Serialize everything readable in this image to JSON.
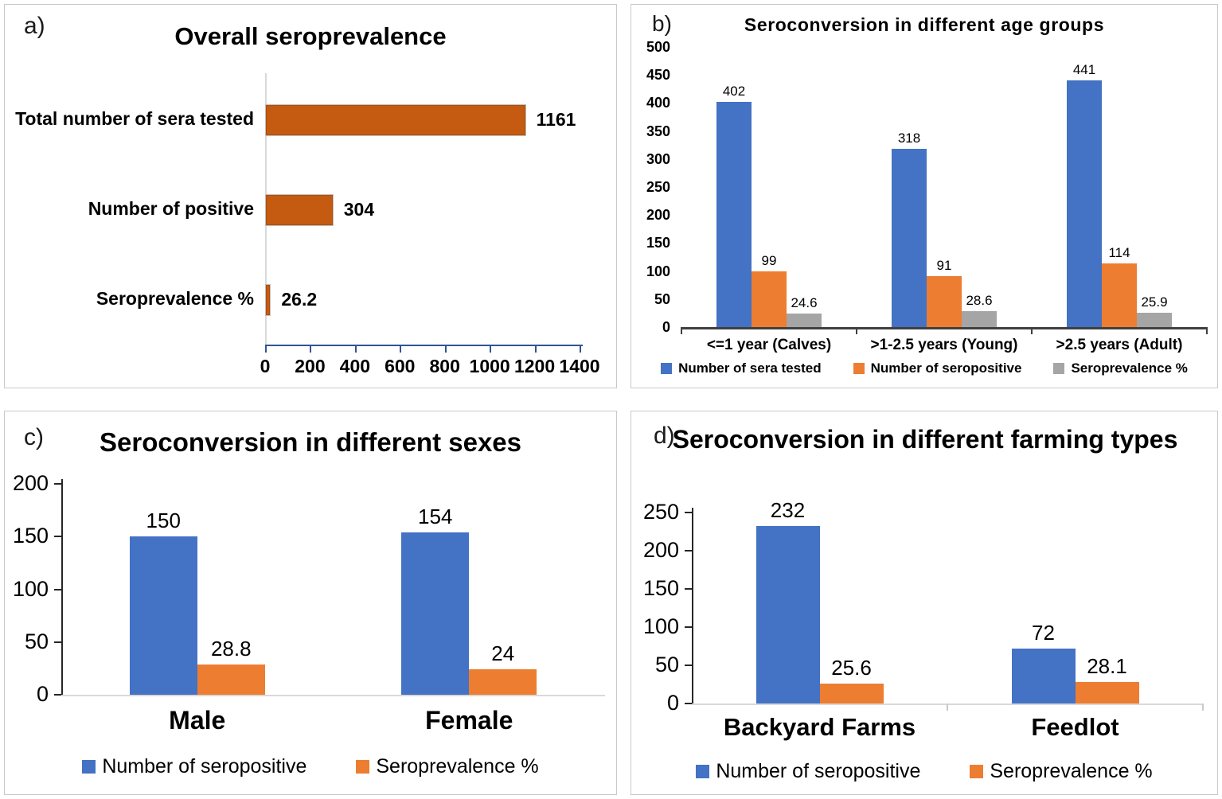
{
  "figure": {
    "panel_labels": [
      "a)",
      "b)",
      "c)",
      "d)"
    ],
    "colors": {
      "blue": "#4472c4",
      "orange": "#ed7d31",
      "gray": "#a5a5a5",
      "dark_orange": "#c55a11"
    }
  },
  "chart_data": [
    {
      "panel": "a",
      "type": "bar",
      "orientation": "horizontal",
      "title": "Overall seroprevalence",
      "categories": [
        "Total number of sera tested",
        "Number of positive",
        "Seroprevalence %"
      ],
      "values": [
        1161,
        304,
        26.2
      ],
      "data_labels": [
        "1161",
        "304",
        "26.2"
      ],
      "bar_color": "#c55a11",
      "xlim": [
        0,
        1400
      ],
      "xticks": [
        0,
        200,
        400,
        600,
        800,
        1000,
        1200,
        1400
      ],
      "grid": false,
      "legend": null
    },
    {
      "panel": "b",
      "type": "bar",
      "orientation": "vertical",
      "title": "Seroconversion in different age groups",
      "categories": [
        "<=1 year (Calves)",
        ">1-2.5 years (Young)",
        ">2.5 years (Adult)"
      ],
      "series": [
        {
          "name": "Number of sera tested",
          "color": "#4472c4",
          "values": [
            402,
            318,
            441
          ],
          "data_labels": [
            "402",
            "318",
            "441"
          ]
        },
        {
          "name": "Number of seropositive",
          "color": "#ed7d31",
          "values": [
            99,
            91,
            114
          ],
          "data_labels": [
            "99",
            "91",
            "114"
          ]
        },
        {
          "name": "Seroprevalence %",
          "color": "#a5a5a5",
          "values": [
            24.6,
            28.6,
            25.9
          ],
          "data_labels": [
            "24.6",
            "28.6",
            "25.9"
          ]
        }
      ],
      "ylim": [
        0,
        500
      ],
      "yticks": [
        0,
        50,
        100,
        150,
        200,
        250,
        300,
        350,
        400,
        450,
        500
      ],
      "grid": false,
      "legend_position": "bottom"
    },
    {
      "panel": "c",
      "type": "bar",
      "orientation": "vertical",
      "title": "Seroconversion in different sexes",
      "categories": [
        "Male",
        "Female"
      ],
      "series": [
        {
          "name": "Number of seropositive",
          "color": "#4472c4",
          "values": [
            150,
            154
          ],
          "data_labels": [
            "150",
            "154"
          ]
        },
        {
          "name": "Seroprevalence %",
          "color": "#ed7d31",
          "values": [
            28.8,
            24
          ],
          "data_labels": [
            "28.8",
            "24"
          ]
        }
      ],
      "ylim": [
        0,
        200
      ],
      "yticks": [
        0,
        50,
        100,
        150,
        200
      ],
      "grid": false,
      "legend_position": "bottom"
    },
    {
      "panel": "d",
      "type": "bar",
      "orientation": "vertical",
      "title": "Seroconversion in different farming types",
      "categories": [
        "Backyard Farms",
        "Feedlot"
      ],
      "series": [
        {
          "name": "Number of seropositive",
          "color": "#4472c4",
          "values": [
            232,
            72
          ],
          "data_labels": [
            "232",
            "72"
          ]
        },
        {
          "name": "Seroprevalence %",
          "color": "#ed7d31",
          "values": [
            25.6,
            28.1
          ],
          "data_labels": [
            "25.6",
            "28.1"
          ]
        }
      ],
      "ylim": [
        0,
        250
      ],
      "yticks": [
        0,
        50,
        100,
        150,
        200,
        250
      ],
      "grid": false,
      "legend_position": "bottom"
    }
  ]
}
